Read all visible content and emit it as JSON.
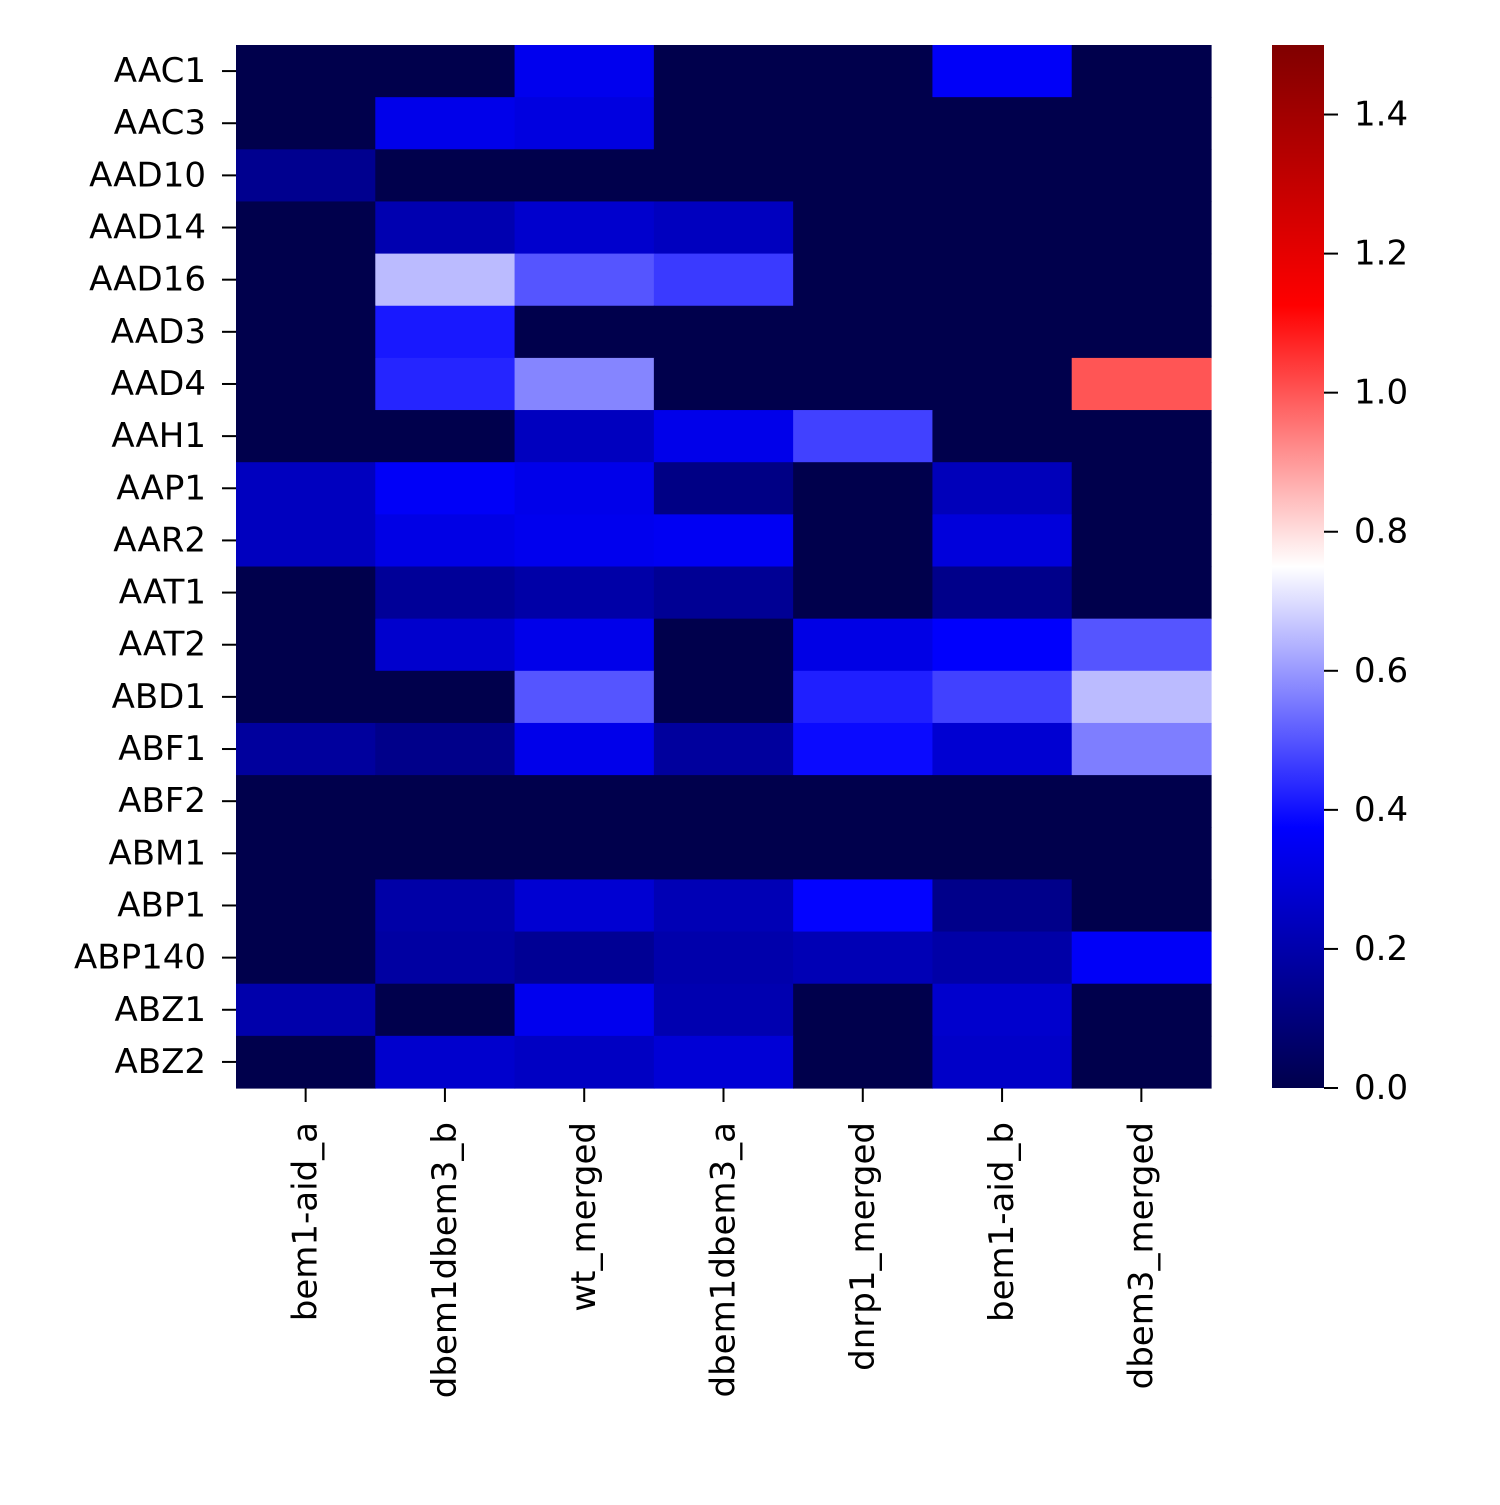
{
  "chart_data": {
    "type": "heatmap",
    "rows": [
      "AAC1",
      "AAC3",
      "AAD10",
      "AAD14",
      "AAD16",
      "AAD3",
      "AAD4",
      "AAH1",
      "AAP1",
      "AAR2",
      "AAT1",
      "AAT2",
      "ABD1",
      "ABF1",
      "ABF2",
      "ABM1",
      "ABP1",
      "ABP140",
      "ABZ1",
      "ABZ2"
    ],
    "columns": [
      "bem1-aid_a",
      "dbem1dbem3_b",
      "wt_merged",
      "dbem1dbem3_a",
      "dnrp1_merged",
      "bem1-aid_b",
      "dbem3_merged"
    ],
    "values": [
      [
        0.0,
        0.0,
        0.34,
        0.0,
        0.0,
        0.36,
        0.0
      ],
      [
        0.0,
        0.33,
        0.31,
        0.0,
        0.0,
        0.0,
        0.0
      ],
      [
        0.14,
        0.0,
        0.0,
        0.0,
        0.0,
        0.0,
        0.0
      ],
      [
        0.0,
        0.21,
        0.27,
        0.24,
        0.0,
        0.0,
        0.0
      ],
      [
        0.0,
        0.65,
        0.5,
        0.46,
        0.0,
        0.0,
        0.0
      ],
      [
        0.0,
        0.41,
        0.0,
        0.0,
        0.0,
        0.0,
        0.0
      ],
      [
        0.0,
        0.43,
        0.57,
        0.0,
        0.0,
        0.0,
        1.0
      ],
      [
        0.0,
        0.0,
        0.24,
        0.33,
        0.47,
        0.0,
        0.0
      ],
      [
        0.24,
        0.36,
        0.33,
        0.12,
        0.0,
        0.23,
        0.0
      ],
      [
        0.24,
        0.32,
        0.34,
        0.35,
        0.0,
        0.3,
        0.0
      ],
      [
        0.0,
        0.16,
        0.19,
        0.15,
        0.0,
        0.13,
        0.0
      ],
      [
        0.0,
        0.27,
        0.33,
        0.0,
        0.32,
        0.37,
        0.5
      ],
      [
        0.0,
        0.0,
        0.5,
        0.0,
        0.42,
        0.47,
        0.65
      ],
      [
        0.17,
        0.13,
        0.33,
        0.17,
        0.39,
        0.28,
        0.56
      ],
      [
        0.0,
        0.0,
        0.0,
        0.0,
        0.0,
        0.0,
        0.0
      ],
      [
        0.0,
        0.0,
        0.0,
        0.0,
        0.0,
        0.0,
        0.0
      ],
      [
        0.0,
        0.19,
        0.28,
        0.22,
        0.38,
        0.13,
        0.0
      ],
      [
        0.0,
        0.18,
        0.15,
        0.2,
        0.22,
        0.19,
        0.36
      ],
      [
        0.2,
        0.0,
        0.34,
        0.21,
        0.0,
        0.27,
        0.0
      ],
      [
        0.0,
        0.27,
        0.25,
        0.29,
        0.0,
        0.26,
        0.0
      ]
    ],
    "colorbar": {
      "min": 0.0,
      "max": 1.5,
      "ticks": [
        0.0,
        0.2,
        0.4,
        0.6,
        0.8,
        1.0,
        1.2,
        1.4
      ],
      "tick_labels": [
        "0.0",
        "0.2",
        "0.4",
        "0.6",
        "0.8",
        "1.0",
        "1.2",
        "1.4"
      ],
      "colormap": "seismic",
      "colormap_stops": [
        "#00004c",
        "#0000ff",
        "#ffffff",
        "#ff0000",
        "#800000"
      ]
    },
    "title": "",
    "xlabel": "",
    "ylabel": "",
    "grid": false
  }
}
